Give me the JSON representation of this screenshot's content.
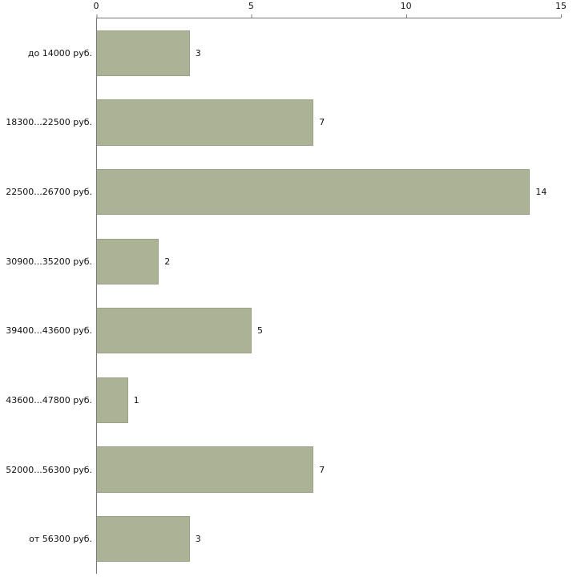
{
  "chart_data": {
    "type": "bar",
    "orientation": "horizontal",
    "title": "",
    "xlabel": "",
    "ylabel": "",
    "categories": [
      "до 14000 руб.",
      "18300...22500 руб.",
      "22500...26700 руб.",
      "30900...35200 руб.",
      "39400...43600 руб.",
      "43600...47800 руб.",
      "52000...56300 руб.",
      "от 56300 руб."
    ],
    "values": [
      3,
      7,
      14,
      2,
      5,
      1,
      7,
      3
    ],
    "xlim": [
      0,
      15
    ],
    "x_ticks": [
      "0",
      "5",
      "10",
      "15"
    ],
    "x_tick_values": [
      0,
      5,
      10,
      15
    ],
    "grid": false,
    "legend": false,
    "bar_color": "#acb295",
    "bar_border_color": "#9aa383",
    "axis_color": "#777777",
    "text_color": "#111111",
    "background_color": "#ffffff"
  }
}
